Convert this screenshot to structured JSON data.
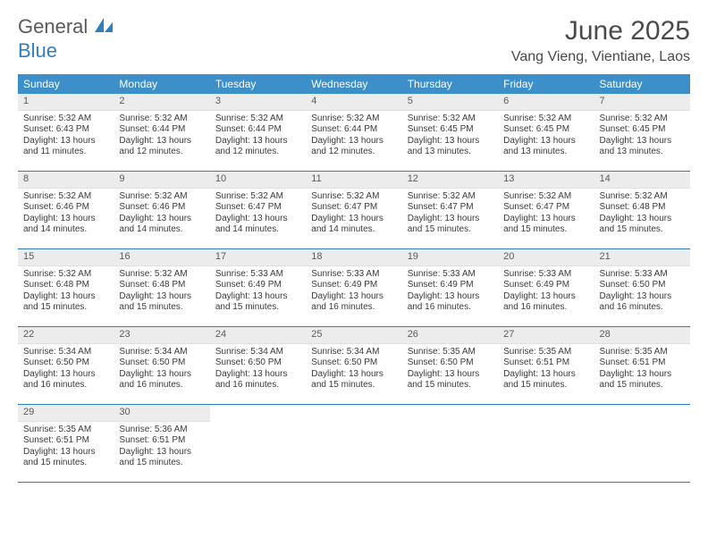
{
  "brand": {
    "word1": "General",
    "word2": "Blue"
  },
  "title": "June 2025",
  "location": "Vang Vieng, Vientiane, Laos",
  "colors": {
    "header_bg": "#3c8fc9",
    "header_text": "#ffffff",
    "rule": "#2f7fbf",
    "daynum_bg": "#ececec",
    "text": "#3a3a3a",
    "brand_gray": "#5a5a5a",
    "brand_blue": "#2f7fbf"
  },
  "dayNames": [
    "Sunday",
    "Monday",
    "Tuesday",
    "Wednesday",
    "Thursday",
    "Friday",
    "Saturday"
  ],
  "weeks": [
    [
      {
        "n": "1",
        "sunrise": "5:32 AM",
        "sunset": "6:43 PM",
        "daylight": "13 hours and 11 minutes."
      },
      {
        "n": "2",
        "sunrise": "5:32 AM",
        "sunset": "6:44 PM",
        "daylight": "13 hours and 12 minutes."
      },
      {
        "n": "3",
        "sunrise": "5:32 AM",
        "sunset": "6:44 PM",
        "daylight": "13 hours and 12 minutes."
      },
      {
        "n": "4",
        "sunrise": "5:32 AM",
        "sunset": "6:44 PM",
        "daylight": "13 hours and 12 minutes."
      },
      {
        "n": "5",
        "sunrise": "5:32 AM",
        "sunset": "6:45 PM",
        "daylight": "13 hours and 13 minutes."
      },
      {
        "n": "6",
        "sunrise": "5:32 AM",
        "sunset": "6:45 PM",
        "daylight": "13 hours and 13 minutes."
      },
      {
        "n": "7",
        "sunrise": "5:32 AM",
        "sunset": "6:45 PM",
        "daylight": "13 hours and 13 minutes."
      }
    ],
    [
      {
        "n": "8",
        "sunrise": "5:32 AM",
        "sunset": "6:46 PM",
        "daylight": "13 hours and 14 minutes."
      },
      {
        "n": "9",
        "sunrise": "5:32 AM",
        "sunset": "6:46 PM",
        "daylight": "13 hours and 14 minutes."
      },
      {
        "n": "10",
        "sunrise": "5:32 AM",
        "sunset": "6:47 PM",
        "daylight": "13 hours and 14 minutes."
      },
      {
        "n": "11",
        "sunrise": "5:32 AM",
        "sunset": "6:47 PM",
        "daylight": "13 hours and 14 minutes."
      },
      {
        "n": "12",
        "sunrise": "5:32 AM",
        "sunset": "6:47 PM",
        "daylight": "13 hours and 15 minutes."
      },
      {
        "n": "13",
        "sunrise": "5:32 AM",
        "sunset": "6:47 PM",
        "daylight": "13 hours and 15 minutes."
      },
      {
        "n": "14",
        "sunrise": "5:32 AM",
        "sunset": "6:48 PM",
        "daylight": "13 hours and 15 minutes."
      }
    ],
    [
      {
        "n": "15",
        "sunrise": "5:32 AM",
        "sunset": "6:48 PM",
        "daylight": "13 hours and 15 minutes."
      },
      {
        "n": "16",
        "sunrise": "5:32 AM",
        "sunset": "6:48 PM",
        "daylight": "13 hours and 15 minutes."
      },
      {
        "n": "17",
        "sunrise": "5:33 AM",
        "sunset": "6:49 PM",
        "daylight": "13 hours and 15 minutes."
      },
      {
        "n": "18",
        "sunrise": "5:33 AM",
        "sunset": "6:49 PM",
        "daylight": "13 hours and 16 minutes."
      },
      {
        "n": "19",
        "sunrise": "5:33 AM",
        "sunset": "6:49 PM",
        "daylight": "13 hours and 16 minutes."
      },
      {
        "n": "20",
        "sunrise": "5:33 AM",
        "sunset": "6:49 PM",
        "daylight": "13 hours and 16 minutes."
      },
      {
        "n": "21",
        "sunrise": "5:33 AM",
        "sunset": "6:50 PM",
        "daylight": "13 hours and 16 minutes."
      }
    ],
    [
      {
        "n": "22",
        "sunrise": "5:34 AM",
        "sunset": "6:50 PM",
        "daylight": "13 hours and 16 minutes."
      },
      {
        "n": "23",
        "sunrise": "5:34 AM",
        "sunset": "6:50 PM",
        "daylight": "13 hours and 16 minutes."
      },
      {
        "n": "24",
        "sunrise": "5:34 AM",
        "sunset": "6:50 PM",
        "daylight": "13 hours and 16 minutes."
      },
      {
        "n": "25",
        "sunrise": "5:34 AM",
        "sunset": "6:50 PM",
        "daylight": "13 hours and 15 minutes."
      },
      {
        "n": "26",
        "sunrise": "5:35 AM",
        "sunset": "6:50 PM",
        "daylight": "13 hours and 15 minutes."
      },
      {
        "n": "27",
        "sunrise": "5:35 AM",
        "sunset": "6:51 PM",
        "daylight": "13 hours and 15 minutes."
      },
      {
        "n": "28",
        "sunrise": "5:35 AM",
        "sunset": "6:51 PM",
        "daylight": "13 hours and 15 minutes."
      }
    ],
    [
      {
        "n": "29",
        "sunrise": "5:35 AM",
        "sunset": "6:51 PM",
        "daylight": "13 hours and 15 minutes."
      },
      {
        "n": "30",
        "sunrise": "5:36 AM",
        "sunset": "6:51 PM",
        "daylight": "13 hours and 15 minutes."
      },
      null,
      null,
      null,
      null,
      null
    ]
  ],
  "labels": {
    "sunrise": "Sunrise:",
    "sunset": "Sunset:",
    "daylight": "Daylight:"
  }
}
